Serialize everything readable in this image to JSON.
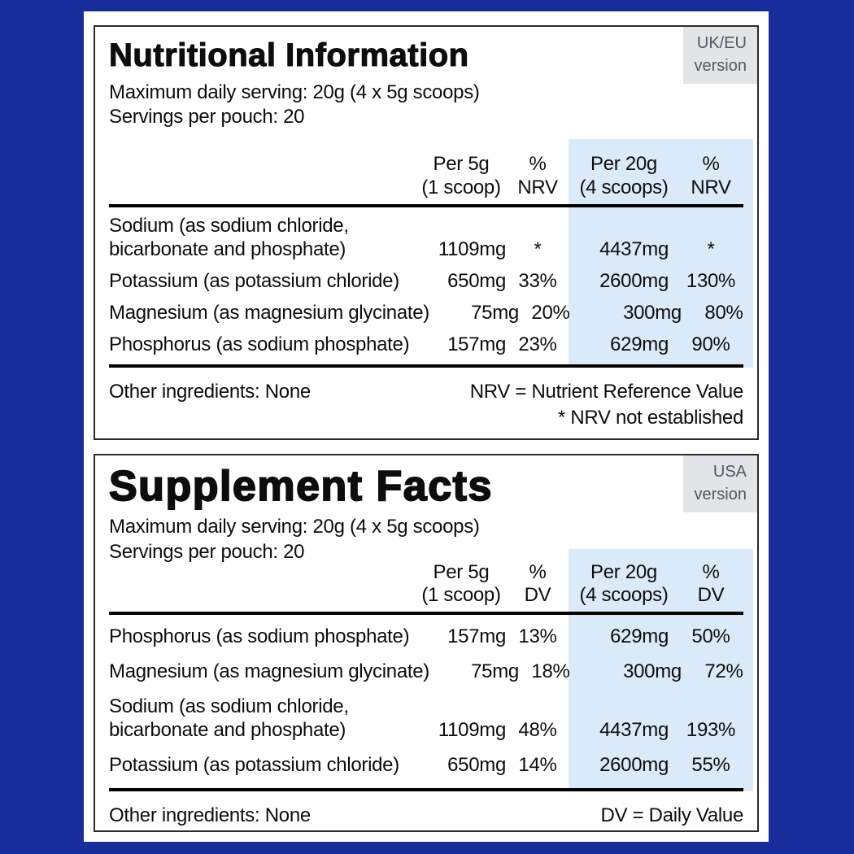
{
  "colors": {
    "background": "#1A2D9C",
    "card": "#FFFFFF",
    "panel_border": "#2B2B2B",
    "rule": "#000000",
    "text": "#0D0D0D",
    "highlight": "#DBEAF8",
    "badge_bg": "#E2E4E7",
    "badge_text": "#53575C"
  },
  "panels": [
    {
      "title": "Nutritional Information",
      "badge": {
        "line1": "UK/EU",
        "line2": "version"
      },
      "serving_line1": "Maximum daily serving: 20g (4 x 5g scoops)",
      "serving_line2": "Servings per pouch: 20",
      "columns": {
        "per_small": {
          "line1": "Per 5g",
          "line2": "(1 scoop)"
        },
        "pct_small": {
          "line1": "%",
          "line2": "NRV"
        },
        "per_large": {
          "line1": "Per 20g",
          "line2": "(4 scoops)"
        },
        "pct_large": {
          "line1": "%",
          "line2": "NRV"
        }
      },
      "rows": [
        {
          "name_line1": "Sodium (as sodium chloride,",
          "name_line2": "bicarbonate and phosphate)",
          "per_small": "1109mg",
          "pct_small": "*",
          "per_large": "4437mg",
          "pct_large": "*"
        },
        {
          "name_line1": "Potassium (as potassium chloride)",
          "name_line2": "",
          "per_small": "650mg",
          "pct_small": "33%",
          "per_large": "2600mg",
          "pct_large": "130%"
        },
        {
          "name_line1": "Magnesium (as magnesium glycinate)",
          "name_line2": "",
          "per_small": "75mg",
          "pct_small": "20%",
          "per_large": "300mg",
          "pct_large": "80%"
        },
        {
          "name_line1": "Phosphorus (as sodium phosphate)",
          "name_line2": "",
          "per_small": "157mg",
          "pct_small": "23%",
          "per_large": "629mg",
          "pct_large": "90%"
        }
      ],
      "footer_left": "Other ingredients: None",
      "footer_right_line1": "NRV = Nutrient Reference Value",
      "footer_right_line2": "* NRV not established"
    },
    {
      "title": "Supplement Facts",
      "badge": {
        "line1": "USA",
        "line2": "version"
      },
      "serving_line1": "Maximum daily serving: 20g (4 x 5g scoops)",
      "serving_line2": "Servings per pouch: 20",
      "columns": {
        "per_small": {
          "line1": "Per 5g",
          "line2": "(1 scoop)"
        },
        "pct_small": {
          "line1": "%",
          "line2": "DV"
        },
        "per_large": {
          "line1": "Per 20g",
          "line2": "(4 scoops)"
        },
        "pct_large": {
          "line1": "%",
          "line2": "DV"
        }
      },
      "rows": [
        {
          "name_line1": "Phosphorus (as sodium phosphate)",
          "name_line2": "",
          "per_small": "157mg",
          "pct_small": "13%",
          "per_large": "629mg",
          "pct_large": "50%"
        },
        {
          "name_line1": "Magnesium (as magnesium glycinate)",
          "name_line2": "",
          "per_small": "75mg",
          "pct_small": "18%",
          "per_large": "300mg",
          "pct_large": "72%"
        },
        {
          "name_line1": "Sodium (as sodium chloride,",
          "name_line2": "bicarbonate and phosphate)",
          "per_small": "1109mg",
          "pct_small": "48%",
          "per_large": "4437mg",
          "pct_large": "193%"
        },
        {
          "name_line1": "Potassium (as potassium chloride)",
          "name_line2": "",
          "per_small": "650mg",
          "pct_small": "14%",
          "per_large": "2600mg",
          "pct_large": "55%"
        }
      ],
      "footer_left": "Other ingredients: None",
      "footer_right_line1": "DV = Daily Value",
      "footer_right_line2": ""
    }
  ]
}
